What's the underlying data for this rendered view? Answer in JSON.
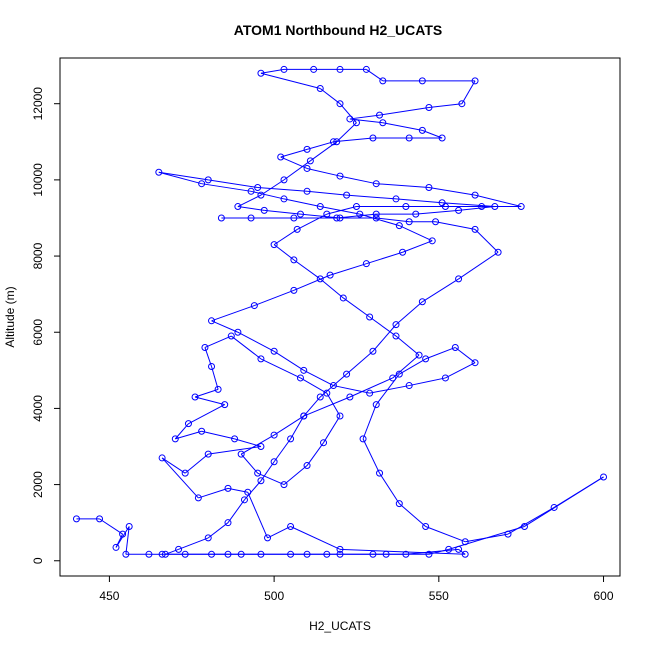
{
  "chart_data": {
    "type": "line",
    "title": "ATOM1 Northbound H2_UCATS",
    "xlabel": "H2_UCATS",
    "ylabel": "Altitude (m)",
    "xlim": [
      435,
      605
    ],
    "ylim": [
      -400,
      13200
    ],
    "xticks": [
      450,
      500,
      550,
      600
    ],
    "yticks": [
      0,
      2000,
      4000,
      6000,
      8000,
      10000,
      12000
    ],
    "grid": false,
    "series": [
      {
        "color": "#0000ff",
        "marker": "open-circle",
        "points": [
          [
            440,
            1100
          ],
          [
            447,
            1100
          ],
          [
            454,
            700
          ],
          [
            452,
            350
          ],
          [
            456,
            900
          ],
          [
            455,
            170
          ],
          [
            462,
            170
          ],
          [
            466,
            170
          ],
          [
            473,
            170
          ],
          [
            486,
            170
          ],
          [
            496,
            170
          ],
          [
            510,
            170
          ],
          [
            516,
            170
          ],
          [
            530,
            170
          ],
          [
            540,
            170
          ],
          [
            556,
            300
          ],
          [
            558,
            170
          ],
          [
            520,
            300
          ],
          [
            505,
            900
          ],
          [
            498,
            600
          ],
          [
            492,
            1800
          ],
          [
            486,
            1900
          ],
          [
            477,
            1650
          ],
          [
            466,
            2700
          ],
          [
            473,
            2300
          ],
          [
            480,
            2800
          ],
          [
            496,
            3000
          ],
          [
            488,
            3200
          ],
          [
            478,
            3400
          ],
          [
            470,
            3200
          ],
          [
            474,
            3600
          ],
          [
            485,
            4100
          ],
          [
            476,
            4300
          ],
          [
            483,
            4500
          ],
          [
            481,
            5100
          ],
          [
            479,
            5600
          ],
          [
            487,
            5900
          ],
          [
            496,
            5300
          ],
          [
            508,
            4800
          ],
          [
            516,
            4400
          ],
          [
            520,
            3800
          ],
          [
            515,
            3100
          ],
          [
            510,
            2500
          ],
          [
            503,
            2000
          ],
          [
            495,
            2300
          ],
          [
            490,
            2800
          ],
          [
            500,
            3300
          ],
          [
            509,
            3800
          ],
          [
            523,
            4300
          ],
          [
            536,
            4800
          ],
          [
            544,
            5400
          ],
          [
            537,
            5900
          ],
          [
            529,
            6400
          ],
          [
            521,
            6900
          ],
          [
            514,
            7400
          ],
          [
            506,
            7900
          ],
          [
            500,
            8300
          ],
          [
            507,
            8700
          ],
          [
            516,
            9100
          ],
          [
            525,
            9300
          ],
          [
            540,
            9300
          ],
          [
            552,
            9300
          ],
          [
            563,
            9300
          ],
          [
            575,
            9300
          ],
          [
            561,
            9600
          ],
          [
            547,
            9800
          ],
          [
            531,
            9900
          ],
          [
            520,
            10100
          ],
          [
            510,
            10300
          ],
          [
            502,
            10600
          ],
          [
            510,
            10800
          ],
          [
            518,
            11000
          ],
          [
            530,
            11100
          ],
          [
            541,
            11100
          ],
          [
            551,
            11100
          ],
          [
            545,
            11300
          ],
          [
            533,
            11500
          ],
          [
            523,
            11600
          ],
          [
            532,
            11700
          ],
          [
            547,
            11900
          ],
          [
            557,
            12000
          ],
          [
            561,
            12600
          ],
          [
            545,
            12600
          ],
          [
            533,
            12600
          ],
          [
            528,
            12900
          ],
          [
            520,
            12900
          ],
          [
            512,
            12900
          ],
          [
            503,
            12900
          ],
          [
            496,
            12800
          ],
          [
            514,
            12400
          ],
          [
            520,
            12000
          ],
          [
            525,
            11500
          ],
          [
            519,
            11000
          ],
          [
            511,
            10500
          ],
          [
            503,
            10000
          ],
          [
            496,
            9600
          ],
          [
            489,
            9300
          ],
          [
            497,
            9200
          ],
          [
            508,
            9100
          ],
          [
            520,
            9000
          ],
          [
            531,
            9000
          ],
          [
            541,
            8900
          ],
          [
            549,
            8900
          ],
          [
            561,
            8700
          ],
          [
            568,
            8100
          ],
          [
            556,
            7400
          ],
          [
            545,
            6800
          ],
          [
            537,
            6200
          ],
          [
            530,
            5500
          ],
          [
            522,
            4900
          ],
          [
            514,
            4300
          ],
          [
            509,
            3800
          ],
          [
            505,
            3200
          ],
          [
            500,
            2600
          ],
          [
            496,
            2100
          ],
          [
            491,
            1600
          ],
          [
            486,
            1000
          ],
          [
            480,
            600
          ],
          [
            471,
            300
          ],
          [
            467,
            170
          ],
          [
            481,
            170
          ],
          [
            490,
            170
          ],
          [
            505,
            170
          ],
          [
            520,
            170
          ],
          [
            534,
            170
          ],
          [
            547,
            170
          ],
          [
            553,
            300
          ],
          [
            576,
            900
          ],
          [
            600,
            2200
          ],
          [
            585,
            1400
          ],
          [
            571,
            700
          ],
          [
            558,
            500
          ],
          [
            546,
            900
          ],
          [
            538,
            1500
          ],
          [
            532,
            2300
          ],
          [
            527,
            3200
          ],
          [
            531,
            4100
          ],
          [
            538,
            4900
          ],
          [
            546,
            5300
          ],
          [
            555,
            5600
          ],
          [
            561,
            5200
          ],
          [
            552,
            4800
          ],
          [
            541,
            4600
          ],
          [
            529,
            4400
          ],
          [
            518,
            4600
          ],
          [
            509,
            5000
          ],
          [
            500,
            5500
          ],
          [
            489,
            6000
          ],
          [
            481,
            6300
          ],
          [
            494,
            6700
          ],
          [
            506,
            7100
          ],
          [
            517,
            7500
          ],
          [
            528,
            7800
          ],
          [
            539,
            8100
          ],
          [
            548,
            8400
          ],
          [
            538,
            8800
          ],
          [
            526,
            9100
          ],
          [
            514,
            9300
          ],
          [
            503,
            9500
          ],
          [
            493,
            9700
          ],
          [
            478,
            9900
          ],
          [
            465,
            10200
          ],
          [
            480,
            10000
          ],
          [
            495,
            9800
          ],
          [
            510,
            9700
          ],
          [
            522,
            9600
          ],
          [
            537,
            9500
          ],
          [
            551,
            9400
          ],
          [
            567,
            9300
          ],
          [
            556,
            9200
          ],
          [
            543,
            9100
          ],
          [
            531,
            9100
          ],
          [
            519,
            9000
          ],
          [
            506,
            9000
          ],
          [
            493,
            9000
          ],
          [
            484,
            9000
          ]
        ]
      }
    ]
  }
}
